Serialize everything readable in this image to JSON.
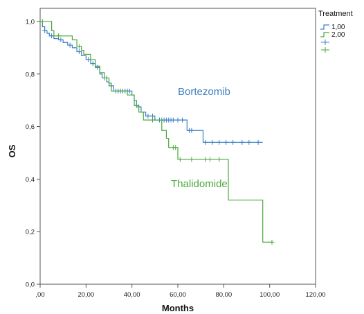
{
  "chart_data": {
    "type": "line",
    "subtype": "kaplan-meier",
    "xlabel": "Months",
    "ylabel": "OS",
    "xlim": [
      0,
      120
    ],
    "ylim": [
      0,
      1.05
    ],
    "xticks": [
      0,
      20,
      40,
      60,
      80,
      100,
      120
    ],
    "xtick_labels": [
      ",00",
      "20,00",
      "40,00",
      "60,00",
      "80,00",
      "100,00",
      "120,00"
    ],
    "yticks": [
      0,
      0.2,
      0.4,
      0.6,
      0.8,
      1.0
    ],
    "ytick_labels": [
      "0,0",
      "0,2",
      "0,4",
      "0,6",
      "0,8",
      "1,0"
    ],
    "grid": false,
    "legend": {
      "title": "Treatment",
      "placement": "right",
      "entries": [
        "1,00",
        "2,00"
      ]
    },
    "series": [
      {
        "name": "1,00",
        "color": "#3d7fc4",
        "steps": [
          [
            0,
            1.0
          ],
          [
            1,
            0.98
          ],
          [
            2,
            0.965
          ],
          [
            3,
            0.955
          ],
          [
            4,
            0.945
          ],
          [
            6,
            0.935
          ],
          [
            8,
            0.93
          ],
          [
            10,
            0.92
          ],
          [
            12,
            0.91
          ],
          [
            14,
            0.9
          ],
          [
            16,
            0.885
          ],
          [
            18,
            0.87
          ],
          [
            20,
            0.855
          ],
          [
            22,
            0.84
          ],
          [
            24,
            0.825
          ],
          [
            26,
            0.8
          ],
          [
            27,
            0.785
          ],
          [
            29,
            0.77
          ],
          [
            30,
            0.755
          ],
          [
            32,
            0.735
          ],
          [
            40,
            0.72
          ],
          [
            41,
            0.7
          ],
          [
            42,
            0.675
          ],
          [
            44,
            0.655
          ],
          [
            46,
            0.64
          ],
          [
            50,
            0.625
          ],
          [
            64,
            0.585
          ],
          [
            71,
            0.54
          ],
          [
            97,
            0.54
          ]
        ],
        "censored": [
          [
            2,
            0.965
          ],
          [
            5,
            0.945
          ],
          [
            9,
            0.93
          ],
          [
            13,
            0.91
          ],
          [
            17,
            0.885
          ],
          [
            21,
            0.855
          ],
          [
            23,
            0.84
          ],
          [
            25,
            0.825
          ],
          [
            28,
            0.785
          ],
          [
            31,
            0.755
          ],
          [
            33,
            0.735
          ],
          [
            34,
            0.735
          ],
          [
            35,
            0.735
          ],
          [
            36,
            0.735
          ],
          [
            37,
            0.735
          ],
          [
            38,
            0.735
          ],
          [
            39,
            0.735
          ],
          [
            43,
            0.675
          ],
          [
            47,
            0.64
          ],
          [
            49,
            0.64
          ],
          [
            52,
            0.625
          ],
          [
            53,
            0.625
          ],
          [
            54,
            0.625
          ],
          [
            55,
            0.625
          ],
          [
            56,
            0.625
          ],
          [
            57,
            0.625
          ],
          [
            58,
            0.625
          ],
          [
            60,
            0.625
          ],
          [
            62,
            0.625
          ],
          [
            65,
            0.585
          ],
          [
            66,
            0.585
          ],
          [
            72,
            0.54
          ],
          [
            75,
            0.54
          ],
          [
            78,
            0.54
          ],
          [
            81,
            0.54
          ],
          [
            84,
            0.54
          ],
          [
            88,
            0.54
          ],
          [
            91,
            0.54
          ],
          [
            95,
            0.54
          ]
        ]
      },
      {
        "name": "2,00",
        "color": "#4aa83a",
        "steps": [
          [
            0,
            1.0
          ],
          [
            5,
            0.965
          ],
          [
            6,
            0.945
          ],
          [
            14,
            0.93
          ],
          [
            16,
            0.905
          ],
          [
            18,
            0.89
          ],
          [
            19,
            0.875
          ],
          [
            22,
            0.855
          ],
          [
            24,
            0.83
          ],
          [
            26,
            0.805
          ],
          [
            28,
            0.785
          ],
          [
            30,
            0.765
          ],
          [
            31,
            0.735
          ],
          [
            38,
            0.72
          ],
          [
            41,
            0.68
          ],
          [
            43,
            0.655
          ],
          [
            45,
            0.625
          ],
          [
            53,
            0.585
          ],
          [
            55,
            0.555
          ],
          [
            56,
            0.52
          ],
          [
            60,
            0.475
          ],
          [
            82,
            0.32
          ],
          [
            97,
            0.16
          ],
          [
            101,
            0.16
          ]
        ],
        "censored": [
          [
            1,
            1.0
          ],
          [
            8,
            0.945
          ],
          [
            17,
            0.905
          ],
          [
            29,
            0.785
          ],
          [
            35,
            0.735
          ],
          [
            42,
            0.68
          ],
          [
            49,
            0.625
          ],
          [
            58,
            0.52
          ],
          [
            59,
            0.52
          ],
          [
            61,
            0.475
          ],
          [
            66,
            0.475
          ],
          [
            72,
            0.475
          ],
          [
            74,
            0.475
          ],
          [
            78,
            0.475
          ],
          [
            101,
            0.16
          ]
        ]
      }
    ],
    "annotations": [
      {
        "text": "Bortezomib",
        "x": 60,
        "y": 0.72,
        "series": 0
      },
      {
        "text": "Thalidomide",
        "x": 57,
        "y": 0.37,
        "series": 1
      }
    ]
  }
}
